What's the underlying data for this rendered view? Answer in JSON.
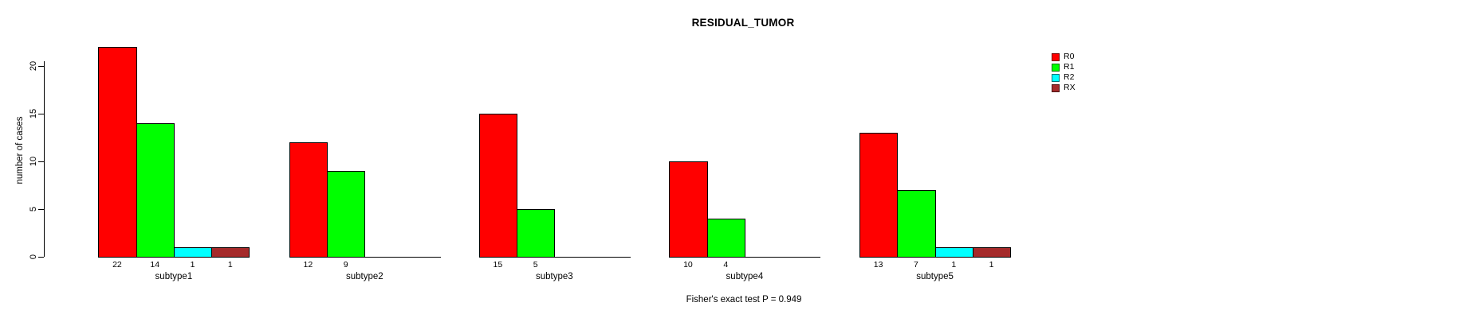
{
  "chart_data": {
    "type": "bar",
    "title": "RESIDUAL_TUMOR",
    "ylabel": "number of cases",
    "xlabel": "",
    "annotation": "Fisher's exact test P = 0.949",
    "categories": [
      "subtype1",
      "subtype2",
      "subtype3",
      "subtype4",
      "subtype5"
    ],
    "series": [
      {
        "name": "R0",
        "color": "#FF0000",
        "values": [
          22,
          12,
          15,
          10,
          13
        ]
      },
      {
        "name": "R1",
        "color": "#00FF00",
        "values": [
          14,
          9,
          5,
          4,
          7
        ]
      },
      {
        "name": "R2",
        "color": "#00FFFF",
        "values": [
          1,
          0,
          0,
          0,
          1
        ]
      },
      {
        "name": "RX",
        "color": "#A52A2A",
        "values": [
          1,
          0,
          0,
          0,
          1
        ]
      }
    ],
    "yticks": [
      0,
      5,
      10,
      15,
      20
    ],
    "ylim": [
      0,
      22
    ],
    "grid": false,
    "legend_position": "top-right",
    "bar_value_labels_shown": true,
    "zero_value_labels_hidden": true
  }
}
